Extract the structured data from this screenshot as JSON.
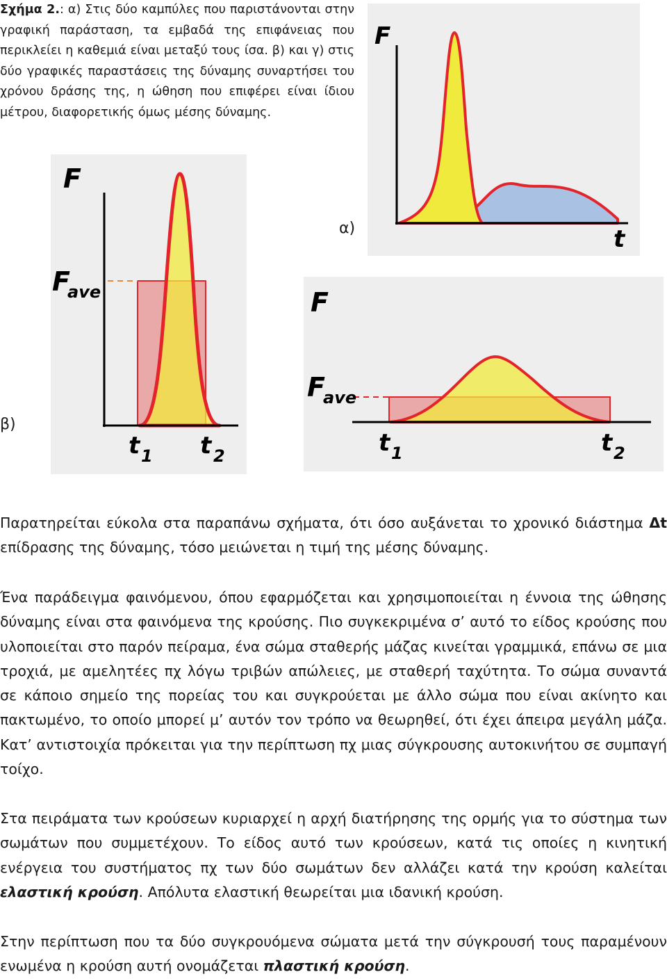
{
  "caption": {
    "label": "Σχήμα 2.",
    "text": ": α) Στις δύο καμπύλες που παριστάνονται στην γραφική παράσταση, τα εμβαδά της επιφάνειας που περικλείει η καθεμιά είναι μεταξύ τους ίσα. β) και γ) στις δύο γραφικές παραστάσεις της δύναμης συναρτήσει του χρόνου δράσης της, η ώθηση που επιφέρει είναι ίδιου μέτρου, διαφορετικής όμως μέσης δύναμης."
  },
  "figure_tags": {
    "a": "α)",
    "b": "β)"
  },
  "graph_labels": {
    "force": "F",
    "time": "t",
    "fave_main": "F",
    "fave_sub": "ave",
    "t1_main": "t",
    "t1_sub": "1",
    "t2_main": "t",
    "t2_sub": "2"
  },
  "colors": {
    "curve_outline": "#e3242b",
    "narrow_fill": "#f0ea3c",
    "wide_fill": "#a9c1e2",
    "rect_fill": "#eaa9a9",
    "panel_bg": "#eeeeee"
  },
  "paragraphs": {
    "p1_before": "Παρατηρείται εύκολα στα παραπάνω σχήματα, ότι όσο αυξάνεται το χρονικό διάστημα ",
    "p1_delta": "Δt",
    "p1_after": " επίδρασης της δύναμης, τόσο μειώνεται η τιμή της μέσης δύναμης.",
    "p2": "Ένα παράδειγμα φαινόμενου, όπου εφαρμόζεται και χρησιμοποιείται η έννοια της ώθησης δύναμης είναι στα φαινόμενα της κρούσης. Πιο συγκεκριμένα σ’ αυτό το είδος κρούσης που υλοποιείται στο παρόν πείραμα, ένα σώμα σταθερής μάζας κινείται γραμμικά, επάνω σε μια τροχιά, με αμελητέες πχ λόγω τριβών απώλειες, με σταθερή ταχύτητα. Το σώμα συναντά σε κάποιο σημείο της πορείας του και συγκρούεται με άλλο σώμα που είναι ακίνητο και πακτωμένο, το οποίο μπορεί μ’ αυτόν τον τρόπο να θεωρηθεί, ότι έχει άπειρα μεγάλη μάζα. Κατ’ αντιστοιχία πρόκειται για την περίπτωση πχ μιας σύγκρουσης αυτοκινήτου σε συμπαγή τοίχο.",
    "p3_before": "Στα πειράματα των κρούσεων κυριαρχεί η αρχή διατήρησης της ορμής για το σύστημα των σωμάτων που συμμετέχουν. Το είδος αυτό των κρούσεων, κατά τις οποίες η κινητική ενέργεια του συστήματος πχ των δύο σωμάτων δεν αλλάζει κατά την κρούση καλείται ",
    "p3_term": "ελαστική κρούση",
    "p3_after": ". Απόλυτα ελαστική θεωρείται μια ιδανική κρούση.",
    "p4_before": "Στην περίπτωση που τα δύο συγκρουόμενα σώματα μετά την σύγκρουσή τους παραμένουν ενωμένα η κρούση αυτή ονομάζεται ",
    "p4_term": "πλαστική κρούση",
    "p4_after": "."
  }
}
